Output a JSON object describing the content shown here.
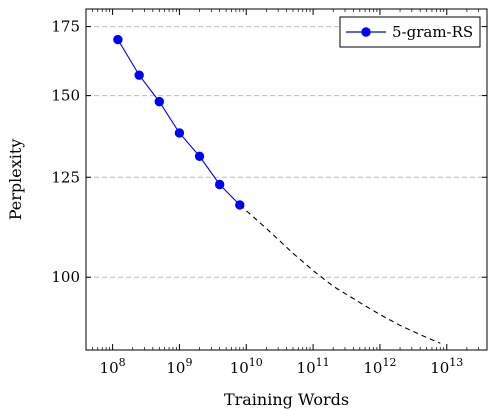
{
  "chart_data": {
    "type": "line",
    "xlabel": "Training Words",
    "ylabel": "Perplexity",
    "x_scale": "log",
    "y_scale": "log",
    "xlim": [
      40000000,
      40000000000000
    ],
    "ylim": [
      85,
      182
    ],
    "grid": "horizontal-dashed",
    "legend_position": "top-right",
    "x_ticks": [
      {
        "value": 100000000,
        "base": "10",
        "exp": "8"
      },
      {
        "value": 1000000000,
        "base": "10",
        "exp": "9"
      },
      {
        "value": 10000000000,
        "base": "10",
        "exp": "10"
      },
      {
        "value": 100000000000,
        "base": "10",
        "exp": "11"
      },
      {
        "value": 1000000000000,
        "base": "10",
        "exp": "12"
      },
      {
        "value": 10000000000000,
        "base": "10",
        "exp": "13"
      }
    ],
    "y_ticks": [
      {
        "value": 100,
        "label": "100"
      },
      {
        "value": 125,
        "label": "125"
      },
      {
        "value": 150,
        "label": "150"
      },
      {
        "value": 175,
        "label": "175"
      }
    ],
    "series": [
      {
        "name": "5-gram-RS",
        "color": "#0000ff",
        "marker": "circle",
        "x": [
          120000000,
          250000000,
          500000000,
          1000000000,
          2000000000,
          4000000000,
          8000000000
        ],
        "y": [
          170,
          157,
          148,
          138,
          131,
          123,
          117.5
        ]
      },
      {
        "color": "#000000",
        "style": "dashed",
        "x": [
          8000000000,
          20000000000,
          50000000000,
          100000000000,
          200000000000,
          500000000000,
          1000000000000,
          2000000000000,
          5000000000000,
          8000000000000
        ],
        "y": [
          117.5,
          111.5,
          105.5,
          101.5,
          98,
          94.5,
          92,
          89.8,
          87.4,
          86.3
        ]
      }
    ]
  }
}
